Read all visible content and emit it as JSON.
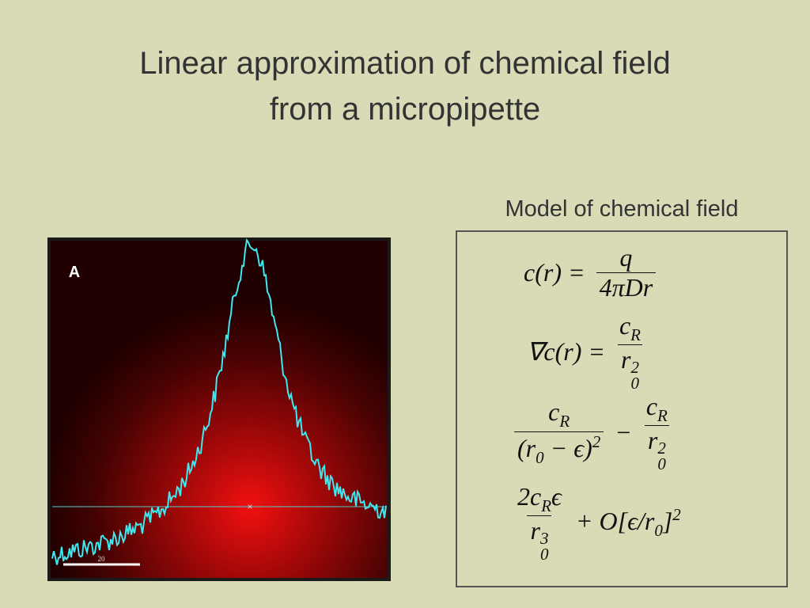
{
  "title": {
    "lines": [
      "Linear approximation of chemical field",
      "from a micropipette"
    ]
  },
  "panel": {
    "label": "A",
    "scale_label": "20"
  },
  "model": {
    "heading": "Model of chemical field",
    "equations": [
      {
        "parts": [
          {
            "text": [
              {
                "t": "c(r) ="
              }
            ]
          },
          {
            "num": [
              {
                "t": "q"
              }
            ],
            "den": [
              {
                "t": "4πDr"
              }
            ]
          }
        ]
      },
      {
        "parts": [
          {
            "text": [
              {
                "t": "∇c(r) ="
              }
            ]
          },
          {
            "num": [
              {
                "t": "c"
              },
              {
                "sub": "R"
              }
            ],
            "den": [
              {
                "t": "r"
              },
              {
                "sup": "2",
                "sub": "0"
              }
            ]
          }
        ]
      },
      {
        "parts": [
          {
            "num": [
              {
                "t": "c"
              },
              {
                "sub": "R"
              }
            ],
            "den": [
              {
                "t": "(r"
              },
              {
                "sub": "0"
              },
              {
                "t": " − ϵ)"
              },
              {
                "sup": "2"
              }
            ]
          },
          {
            "text": [
              {
                "t": "−"
              }
            ]
          },
          {
            "num": [
              {
                "t": "c"
              },
              {
                "sub": "R"
              }
            ],
            "den": [
              {
                "t": "r"
              },
              {
                "sup": "2",
                "sub": "0"
              }
            ]
          }
        ]
      },
      {
        "parts": [
          {
            "num": [
              {
                "t": "2c"
              },
              {
                "sub": "R"
              },
              {
                "t": "ϵ"
              }
            ],
            "den": [
              {
                "t": "r"
              },
              {
                "sup": "3",
                "sub": "0"
              }
            ]
          },
          {
            "text": [
              {
                "t": "+ O[ϵ/r"
              },
              {
                "sub": "0"
              },
              {
                "t": "]"
              },
              {
                "sup": "2"
              }
            ]
          }
        ]
      }
    ]
  }
}
